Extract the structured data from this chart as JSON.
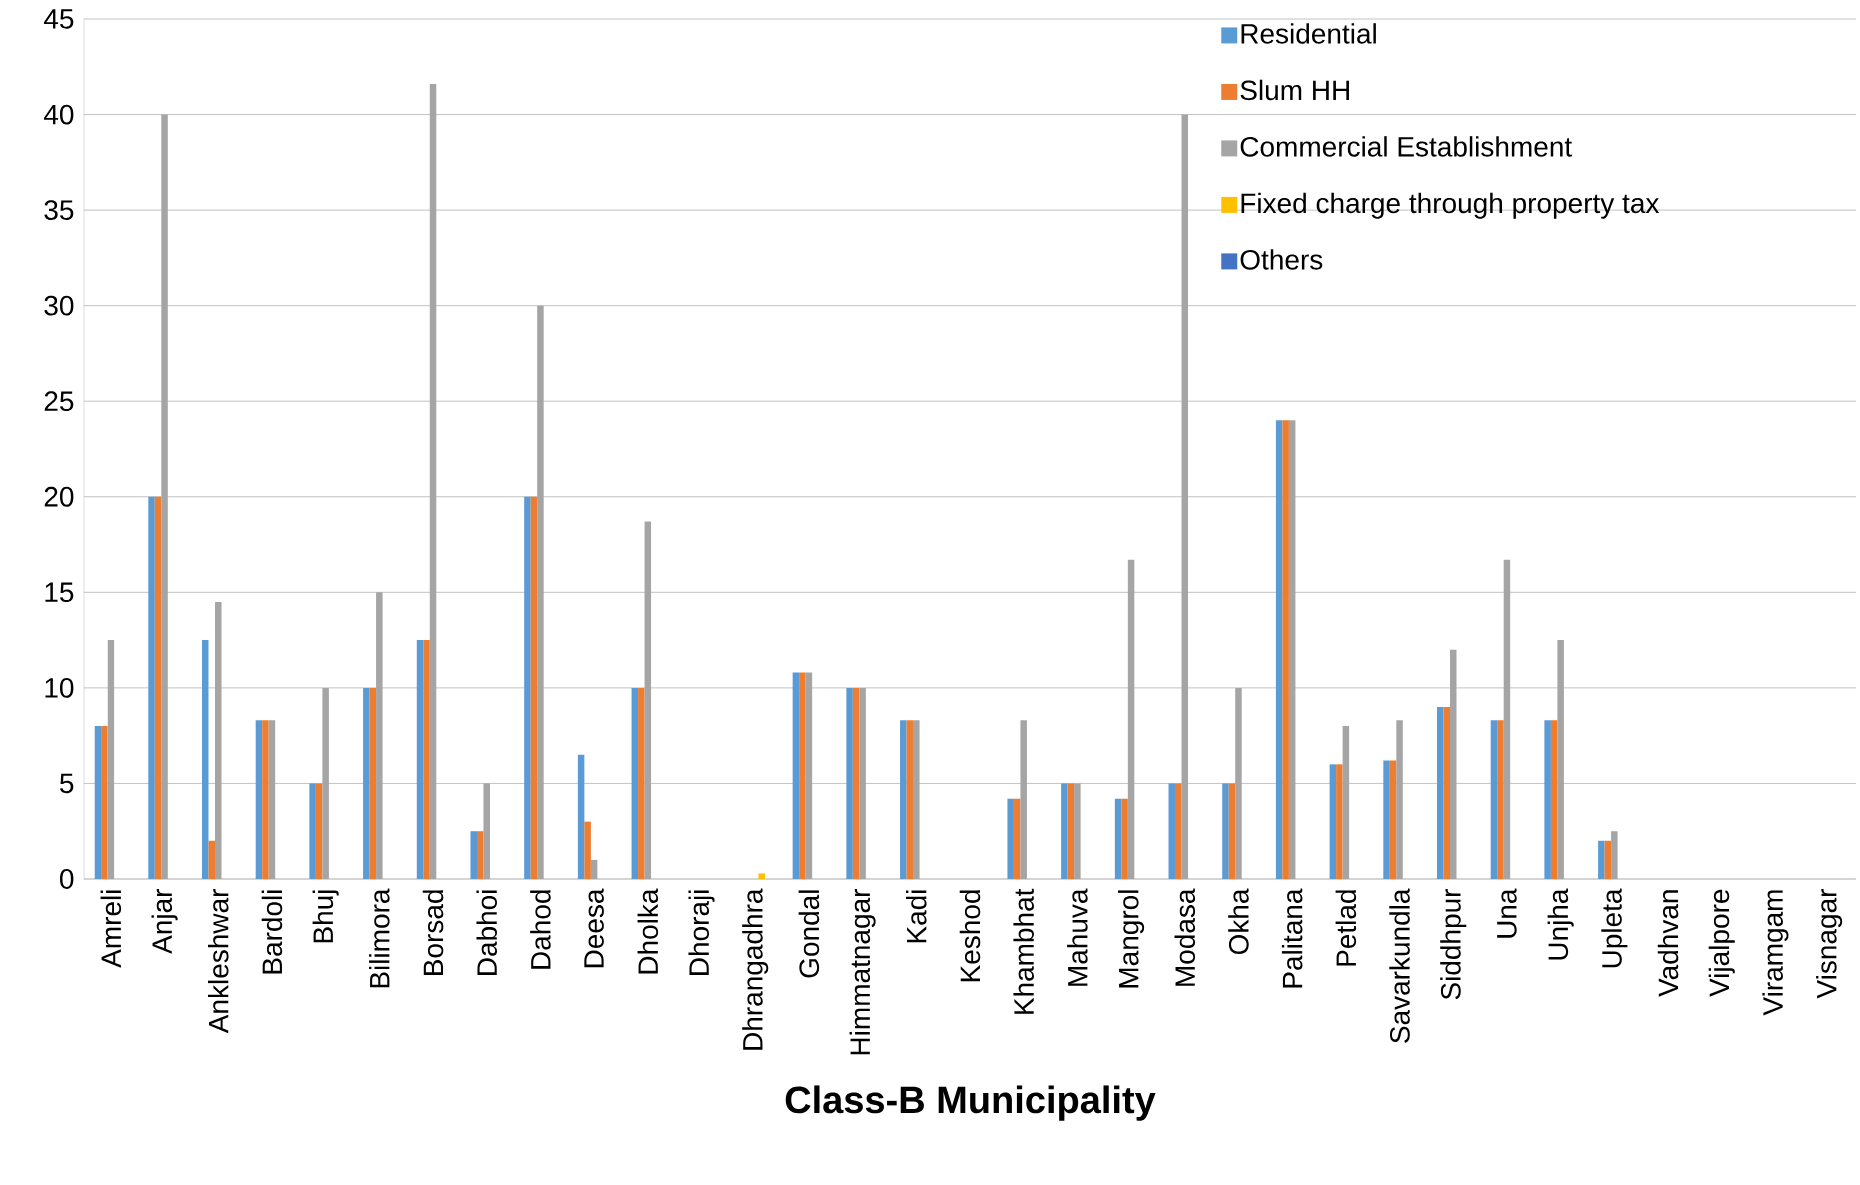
{
  "chart_data": {
    "type": "bar",
    "xlabel": "Class-B Municipality",
    "categories": [
      "Amreli",
      "Anjar",
      "Ankleshwar",
      "Bardoli",
      "Bhuj",
      "Bilimora",
      "Borsad",
      "Dabhoi",
      "Dahod",
      "Deesa",
      "Dholka",
      "Dhoraji",
      "Dhrangadhra",
      "Gondal",
      "Himmatnagar",
      "Kadi",
      "Keshod",
      "Khambhat",
      "Mahuva",
      "Mangrol",
      "Modasa",
      "Okha",
      "Palitana",
      "Petlad",
      "Savarkundla",
      "Siddhpur",
      "Una",
      "Unjha",
      "Upleta",
      "Vadhvan",
      "Vijalpore",
      "Viramgam",
      "Visnagar"
    ],
    "series": [
      {
        "name": "Residential",
        "color": "#5b9bd5",
        "values": [
          8,
          20,
          12.5,
          8.3,
          5,
          10,
          12.5,
          2.5,
          20,
          6.5,
          10,
          0,
          0,
          10.8,
          10,
          8.3,
          0,
          4.2,
          5,
          4.2,
          5,
          5,
          24,
          6,
          6.2,
          9,
          8.3,
          8.3,
          2,
          0,
          0,
          0,
          0
        ]
      },
      {
        "name": "Slum HH",
        "color": "#ed7d31",
        "values": [
          8,
          20,
          2,
          8.3,
          5,
          10,
          12.5,
          2.5,
          20,
          3,
          10,
          0,
          0,
          10.8,
          10,
          8.3,
          0,
          4.2,
          5,
          4.2,
          5,
          5,
          24,
          6,
          6.2,
          9,
          8.3,
          8.3,
          2,
          0,
          0,
          0,
          0
        ]
      },
      {
        "name": "Commercial Establishment",
        "color": "#a5a5a5",
        "values": [
          12.5,
          40,
          14.5,
          8.3,
          10,
          15,
          41.6,
          5,
          30,
          1,
          18.7,
          0,
          0,
          10.8,
          10,
          8.3,
          0,
          8.3,
          5,
          16.7,
          40,
          10,
          24,
          8,
          8.3,
          12,
          16.7,
          12.5,
          2.5,
          0,
          0,
          0,
          0
        ]
      },
      {
        "name": "Fixed charge through property tax",
        "color": "#ffc000",
        "values": [
          0,
          0,
          0,
          0,
          0,
          0,
          0,
          0,
          0,
          0,
          0,
          0,
          0.3,
          0,
          0,
          0,
          0,
          0,
          0,
          0,
          0,
          0,
          0,
          0,
          0,
          0,
          0,
          0,
          0,
          0,
          0,
          0,
          0
        ]
      },
      {
        "name": "Others",
        "color": "#4472c4",
        "values": [
          0,
          0,
          0,
          0,
          0,
          0,
          0,
          0,
          0,
          0,
          0,
          0,
          0,
          0,
          0,
          0,
          0,
          0,
          0,
          0,
          0,
          0,
          0,
          0,
          0,
          0,
          0,
          0,
          0,
          0,
          0,
          0,
          0
        ]
      }
    ],
    "ylim": [
      0,
      45
    ],
    "yticks": [
      0,
      5,
      10,
      15,
      20,
      25,
      30,
      35,
      40,
      45
    ],
    "grid": "y",
    "legend": "top right"
  }
}
